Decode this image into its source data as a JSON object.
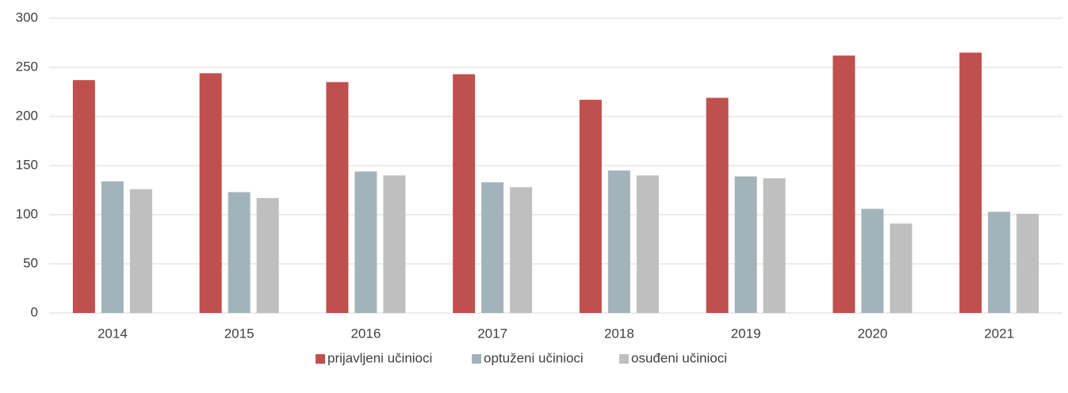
{
  "chart_data": {
    "type": "bar",
    "categories": [
      "2014",
      "2015",
      "2016",
      "2017",
      "2018",
      "2019",
      "2020",
      "2021"
    ],
    "series": [
      {
        "name": "prijavljeni učinioci",
        "color": "#c0504d",
        "values": [
          237,
          244,
          235,
          243,
          217,
          219,
          262,
          265
        ]
      },
      {
        "name": "optuženi učinioci",
        "color": "#a2b4ba",
        "values": [
          134,
          123,
          144,
          133,
          145,
          139,
          106,
          103
        ]
      },
      {
        "name": "osuđeni učinioci",
        "color": "#bfbfbf",
        "values": [
          126,
          117,
          140,
          128,
          140,
          137,
          91,
          101
        ]
      }
    ],
    "ylim": [
      0,
      300
    ],
    "yticks": [
      0,
      50,
      100,
      150,
      200,
      250,
      300
    ],
    "grid": true,
    "legend": "bottom"
  }
}
